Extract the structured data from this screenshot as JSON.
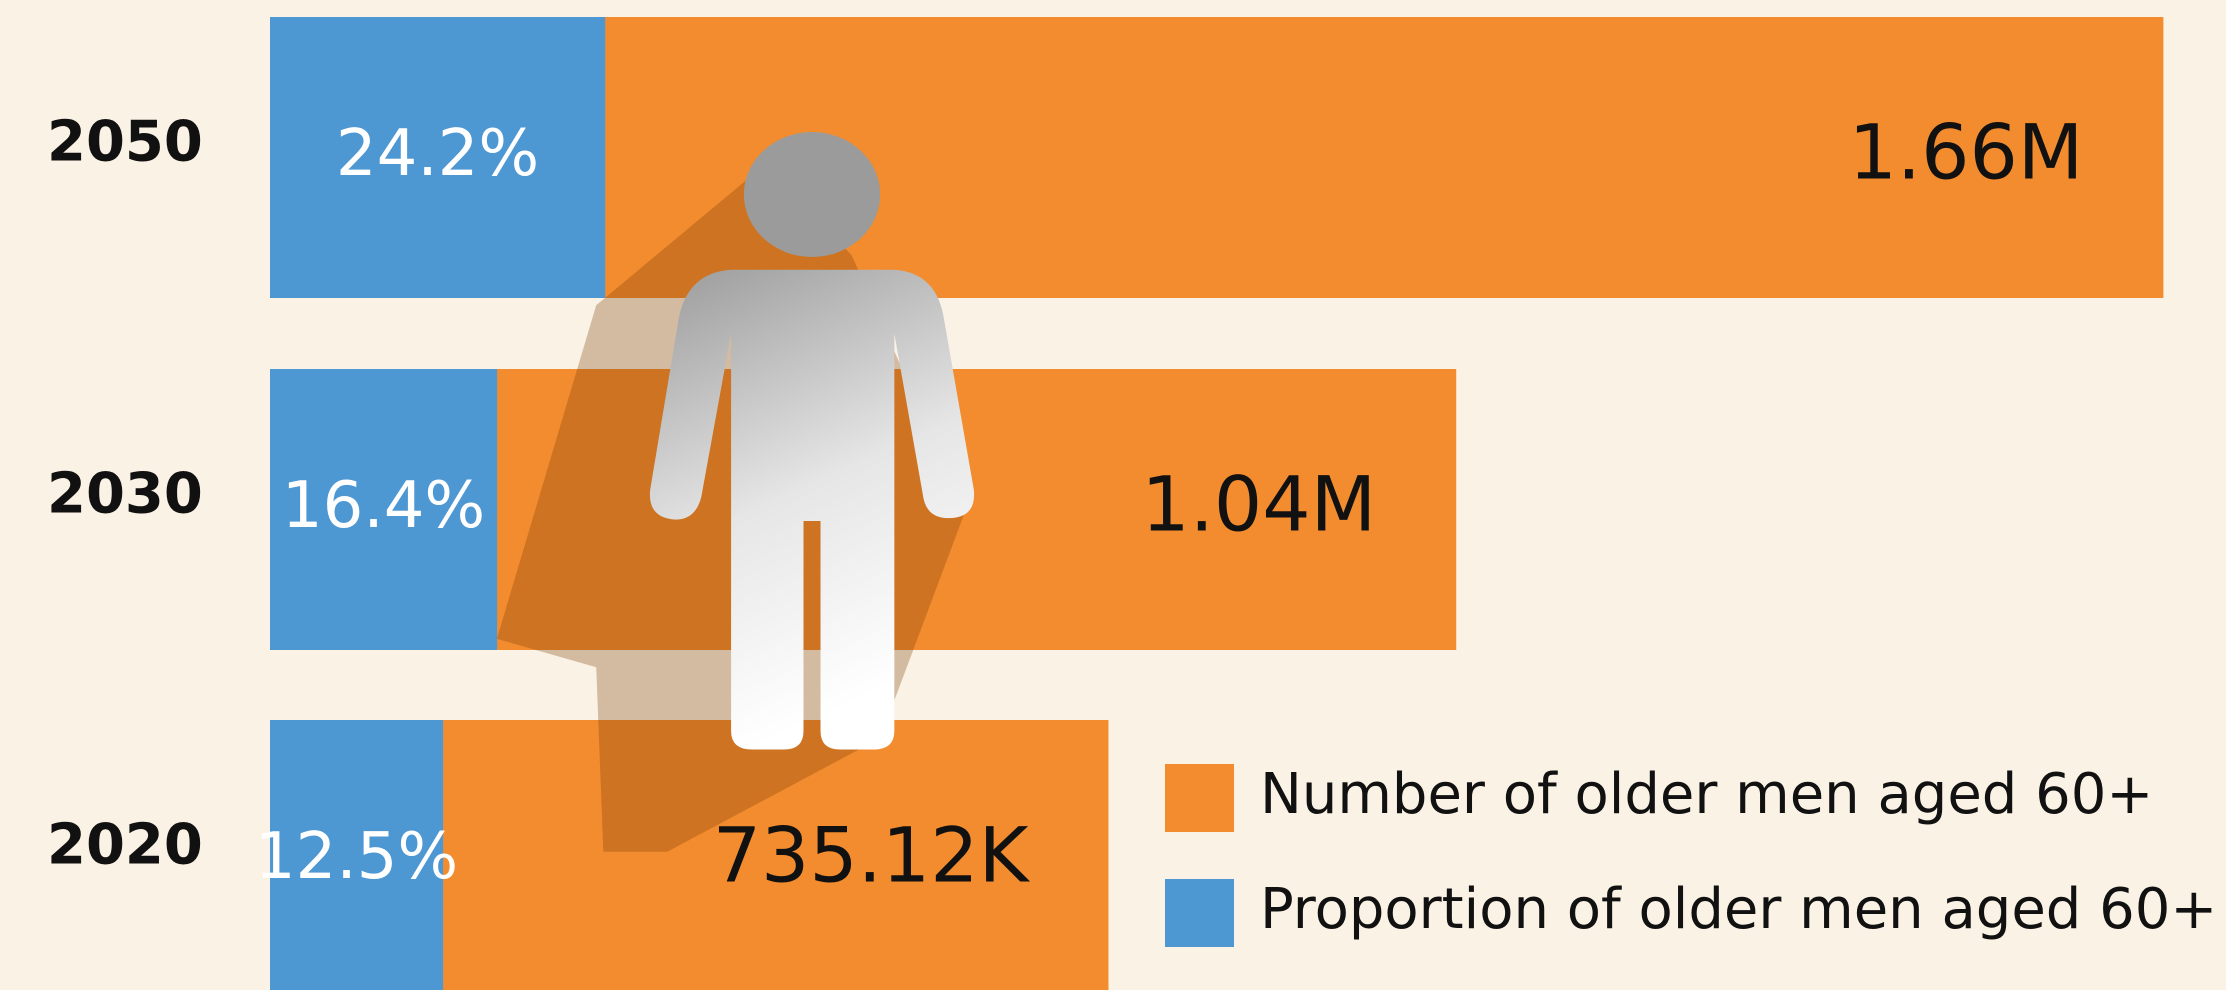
{
  "chart_data": {
    "type": "bar",
    "orientation": "horizontal",
    "categories": [
      "2050",
      "2030",
      "2020"
    ],
    "xlim": [
      0,
      1700000
    ],
    "x2lim": [
      0,
      140
    ],
    "series": [
      {
        "name": "Number of older men aged 60+",
        "color": "#f28c2e",
        "values": [
          1660000,
          1040000,
          735120
        ],
        "value_labels": [
          "1.66M",
          "1.04M",
          "735.12K"
        ]
      },
      {
        "name": "Proportion of older men aged 60+",
        "color": "#4d97d3",
        "axis": "x2",
        "values": [
          24.2,
          16.4,
          12.5
        ],
        "value_labels": [
          "24.2%",
          "16.4%",
          "12.5%"
        ]
      }
    ],
    "legend": "lower right"
  }
}
